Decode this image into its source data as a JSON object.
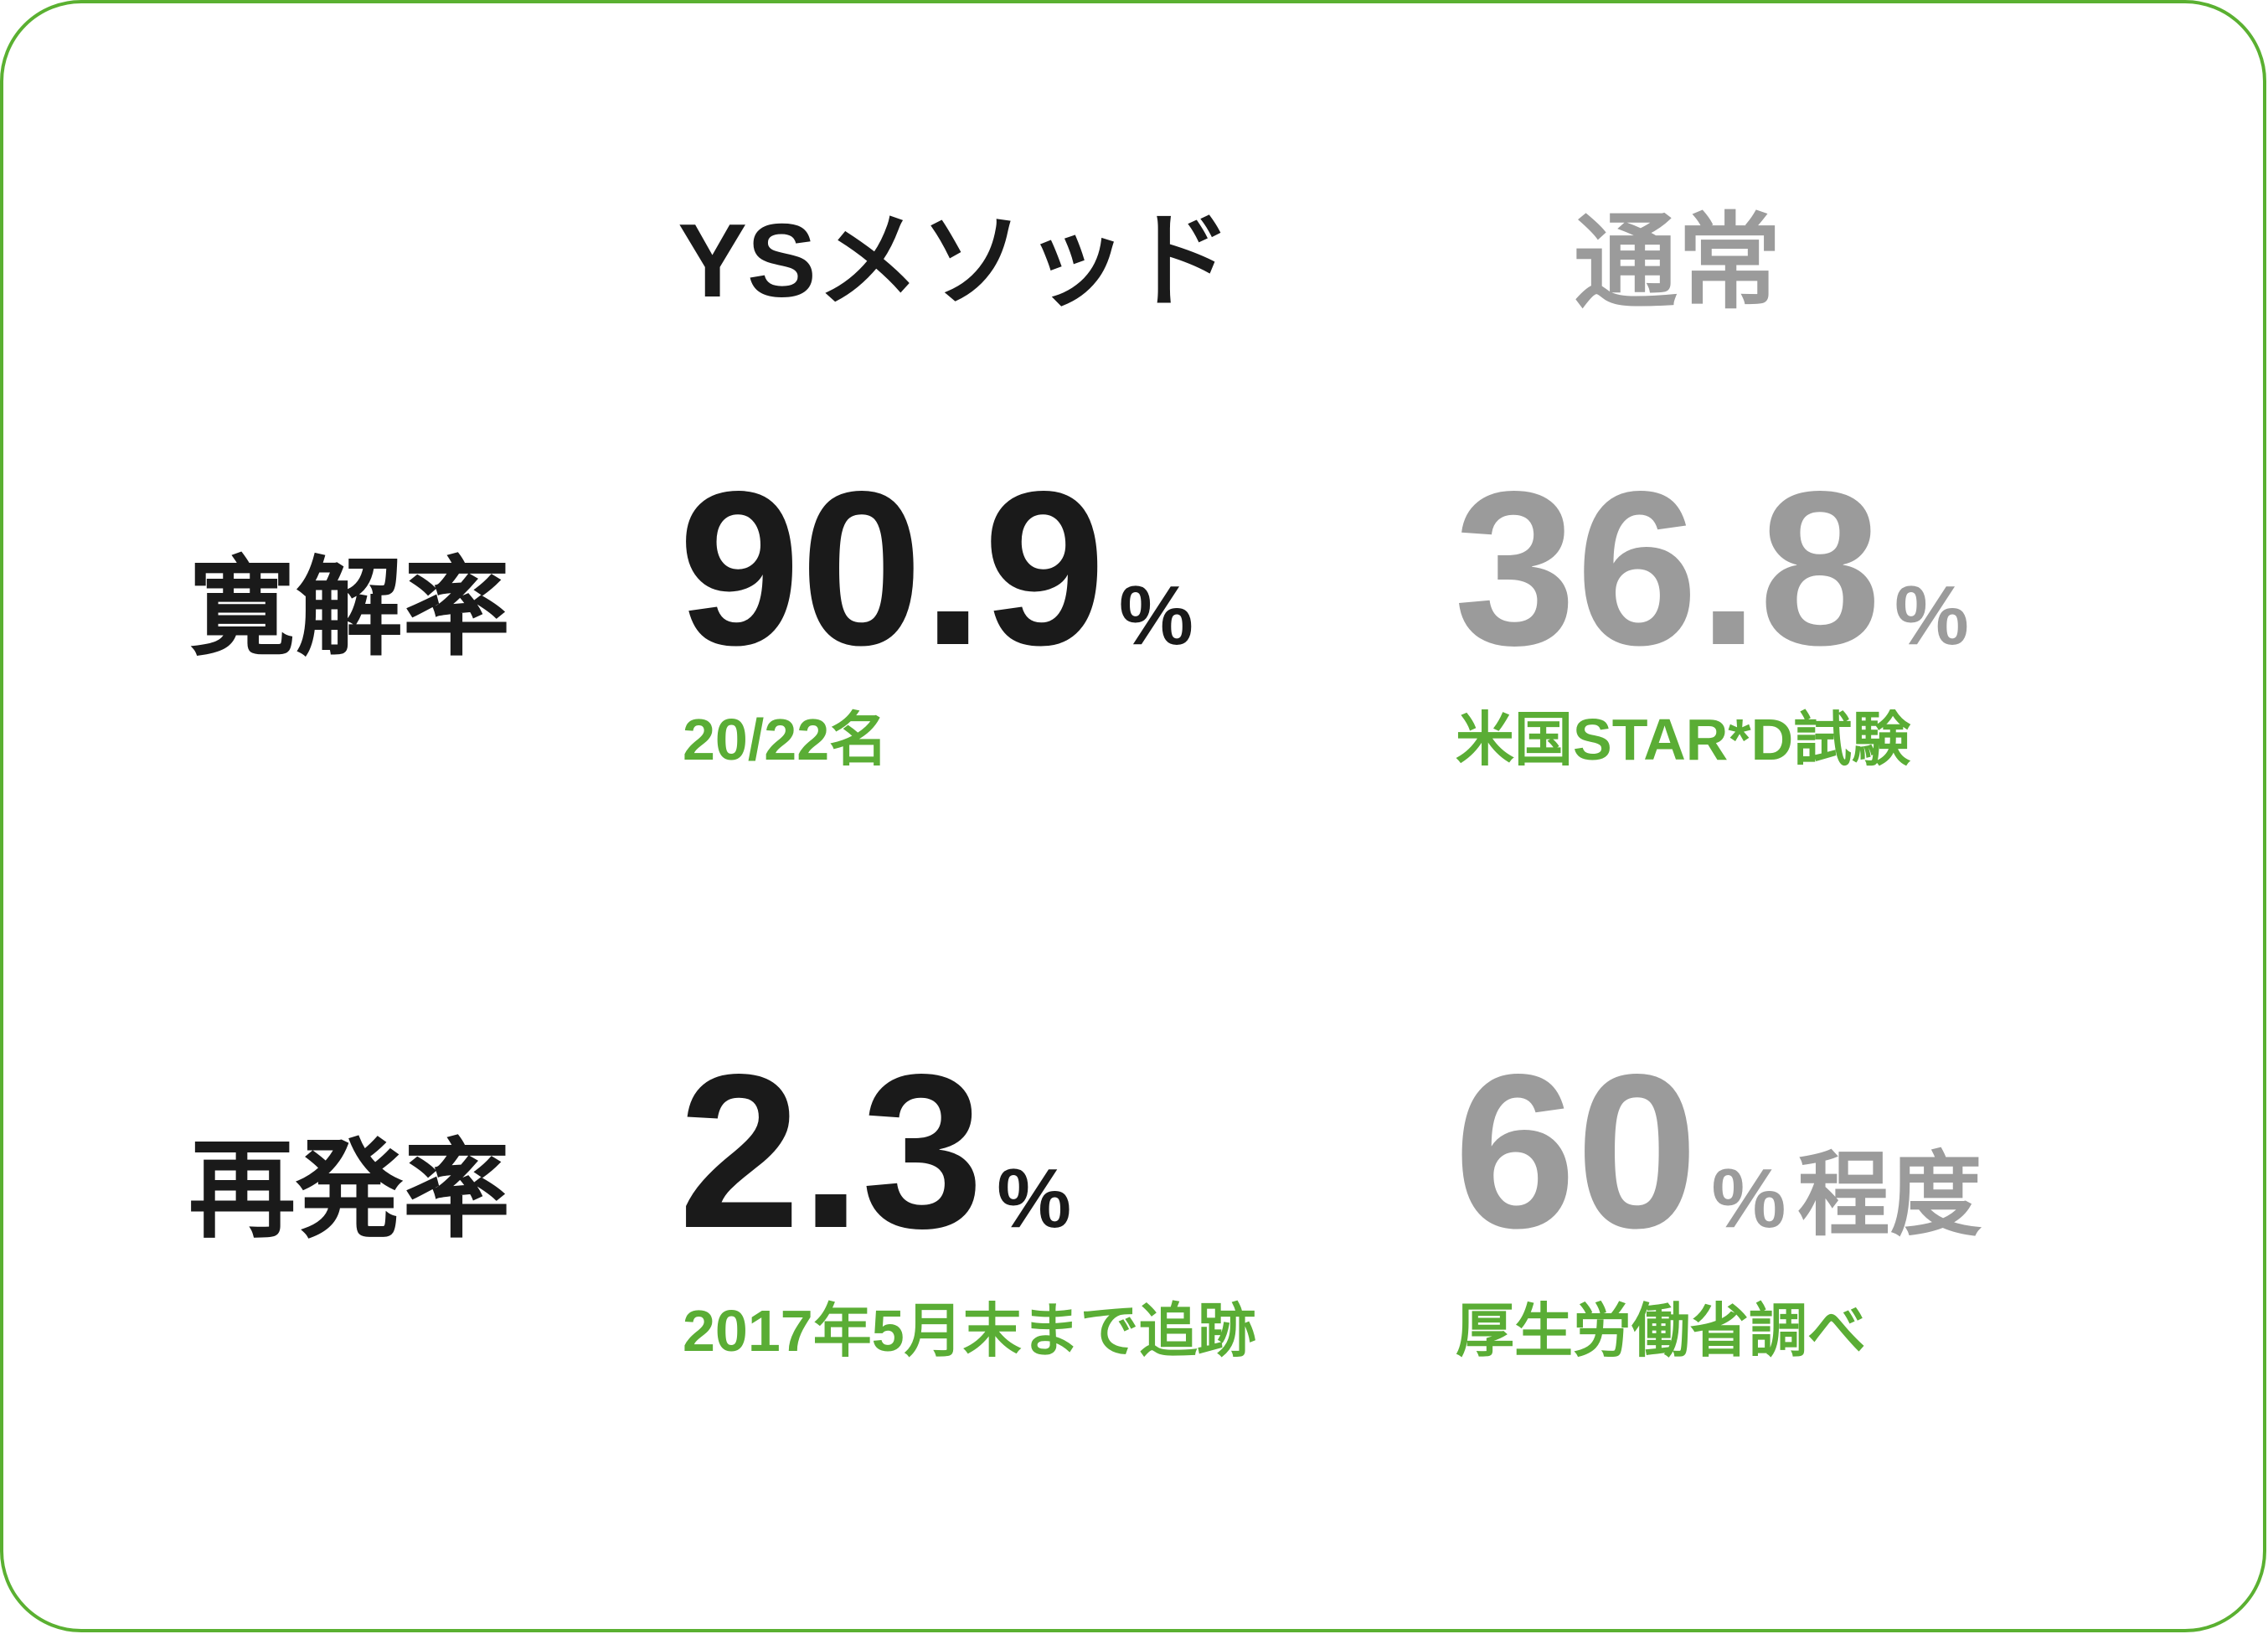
{
  "header": {
    "columns": [
      "YSメソッド",
      "通常"
    ]
  },
  "rows": [
    {
      "label": "寛解率",
      "cells": [
        {
          "value": "90.9",
          "unit": "%",
          "note": "20/22名"
        },
        {
          "value": "36.8",
          "unit": "%",
          "note": "米国STAR*D試験"
        }
      ]
    },
    {
      "label": "再発率",
      "cells": [
        {
          "value": "2.3",
          "unit": "%",
          "note": "2017年5月末まで追跡"
        },
        {
          "value": "60",
          "unit": "%",
          "suffix": "程度",
          "note": "厚生労働省調べ"
        }
      ]
    }
  ]
}
